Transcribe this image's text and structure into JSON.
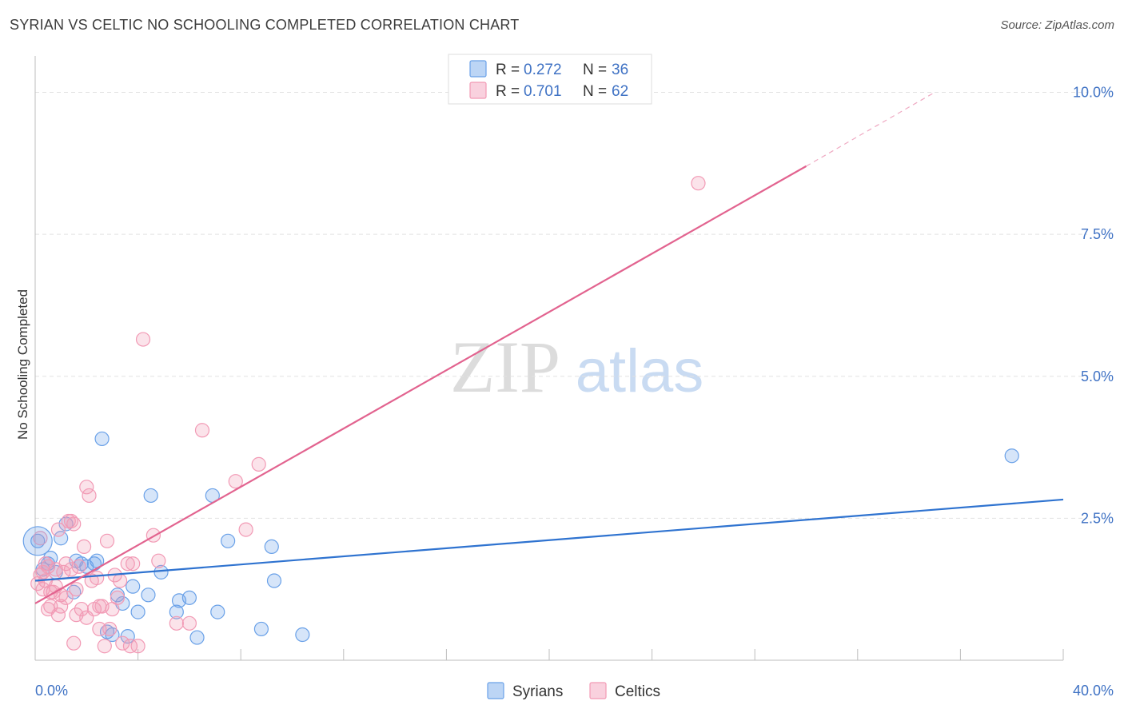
{
  "header": {
    "title": "SYRIAN VS CELTIC NO SCHOOLING COMPLETED CORRELATION CHART",
    "source": "Source: ZipAtlas.com"
  },
  "watermark": {
    "zip": "ZIP",
    "atlas": "atlas"
  },
  "chart_data": {
    "type": "scatter",
    "title": "SYRIAN VS CELTIC NO SCHOOLING COMPLETED CORRELATION CHART",
    "xlabel": "",
    "ylabel": "No Schooling Completed",
    "xlim": [
      0,
      40
    ],
    "ylim": [
      0,
      10.5
    ],
    "x_tick_labels": [
      "0.0%",
      "40.0%"
    ],
    "y_ticks": [
      2.5,
      5.0,
      7.5,
      10.0
    ],
    "y_tick_labels": [
      "2.5%",
      "5.0%",
      "7.5%",
      "10.0%"
    ],
    "legend": [
      {
        "r_label": "R = ",
        "r_value": "0.272",
        "n_label": "N = ",
        "n_value": "36"
      },
      {
        "r_label": "R = ",
        "r_value": "0.701",
        "n_label": "N = ",
        "n_value": "62"
      }
    ],
    "series": [
      {
        "name": "Syrians",
        "color": "#6aa1e8",
        "line_color": "#2f73d0",
        "trend": {
          "x0": 0,
          "y0": 1.4,
          "x1": 40,
          "y1": 2.83
        },
        "points": [
          [
            0.1,
            2.1
          ],
          [
            0.3,
            1.6
          ],
          [
            0.5,
            1.7
          ],
          [
            0.6,
            1.8
          ],
          [
            0.8,
            1.55
          ],
          [
            1.0,
            2.15
          ],
          [
            1.2,
            2.4
          ],
          [
            1.5,
            1.2
          ],
          [
            1.6,
            1.75
          ],
          [
            1.8,
            1.7
          ],
          [
            2.0,
            1.65
          ],
          [
            2.3,
            1.7
          ],
          [
            2.4,
            1.75
          ],
          [
            2.6,
            3.9
          ],
          [
            2.8,
            0.5
          ],
          [
            3.0,
            0.45
          ],
          [
            3.2,
            1.15
          ],
          [
            3.4,
            1.0
          ],
          [
            3.6,
            0.42
          ],
          [
            3.8,
            1.3
          ],
          [
            4.0,
            0.85
          ],
          [
            4.4,
            1.15
          ],
          [
            4.5,
            2.9
          ],
          [
            4.9,
            1.55
          ],
          [
            5.5,
            0.85
          ],
          [
            5.6,
            1.05
          ],
          [
            6.0,
            1.1
          ],
          [
            6.3,
            0.4
          ],
          [
            6.9,
            2.9
          ],
          [
            7.1,
            0.85
          ],
          [
            7.5,
            2.1
          ],
          [
            8.8,
            0.55
          ],
          [
            9.2,
            2.0
          ],
          [
            9.3,
            1.4
          ],
          [
            10.4,
            0.45
          ],
          [
            38.0,
            3.6
          ]
        ]
      },
      {
        "name": "Celtics",
        "color": "#f29ab5",
        "line_color": "#e2638f",
        "trend": {
          "x0": 0,
          "y0": 1.0,
          "x1": 30,
          "y1": 8.7
        },
        "trend_dashed": {
          "x0": 30,
          "y0": 8.7,
          "x1": 35,
          "y1": 10.0
        },
        "points": [
          [
            0.1,
            1.35
          ],
          [
            0.2,
            1.5
          ],
          [
            0.3,
            1.25
          ],
          [
            0.4,
            1.4
          ],
          [
            0.5,
            1.65
          ],
          [
            0.5,
            0.9
          ],
          [
            0.6,
            1.2
          ],
          [
            0.7,
            1.2
          ],
          [
            0.8,
            1.6
          ],
          [
            0.9,
            2.3
          ],
          [
            0.9,
            0.8
          ],
          [
            1.0,
            1.15
          ],
          [
            1.0,
            0.95
          ],
          [
            1.1,
            1.55
          ],
          [
            1.2,
            1.7
          ],
          [
            1.3,
            2.45
          ],
          [
            1.4,
            1.6
          ],
          [
            1.4,
            2.45
          ],
          [
            1.5,
            2.4
          ],
          [
            1.5,
            0.3
          ],
          [
            1.6,
            0.8
          ],
          [
            1.7,
            1.65
          ],
          [
            1.8,
            0.9
          ],
          [
            1.9,
            2.0
          ],
          [
            2.0,
            0.75
          ],
          [
            2.0,
            3.05
          ],
          [
            2.1,
            2.9
          ],
          [
            2.2,
            1.4
          ],
          [
            2.3,
            0.9
          ],
          [
            2.4,
            1.45
          ],
          [
            2.5,
            0.55
          ],
          [
            2.5,
            0.95
          ],
          [
            2.6,
            0.95
          ],
          [
            2.7,
            0.25
          ],
          [
            2.8,
            2.1
          ],
          [
            2.9,
            0.55
          ],
          [
            3.0,
            0.9
          ],
          [
            3.1,
            1.5
          ],
          [
            3.2,
            1.1
          ],
          [
            3.3,
            1.4
          ],
          [
            3.4,
            0.3
          ],
          [
            3.6,
            1.7
          ],
          [
            3.7,
            0.25
          ],
          [
            3.8,
            1.7
          ],
          [
            4.0,
            0.25
          ],
          [
            4.2,
            5.65
          ],
          [
            4.6,
            2.2
          ],
          [
            4.8,
            1.75
          ],
          [
            5.5,
            0.65
          ],
          [
            6.0,
            0.65
          ],
          [
            6.5,
            4.05
          ],
          [
            7.8,
            3.15
          ],
          [
            8.2,
            2.3
          ],
          [
            8.7,
            3.45
          ],
          [
            25.8,
            8.4
          ],
          [
            0.2,
            2.15
          ],
          [
            0.3,
            1.55
          ],
          [
            0.4,
            1.7
          ],
          [
            0.6,
            0.95
          ],
          [
            0.8,
            1.3
          ],
          [
            1.2,
            1.1
          ],
          [
            1.6,
            1.25
          ]
        ]
      }
    ]
  }
}
